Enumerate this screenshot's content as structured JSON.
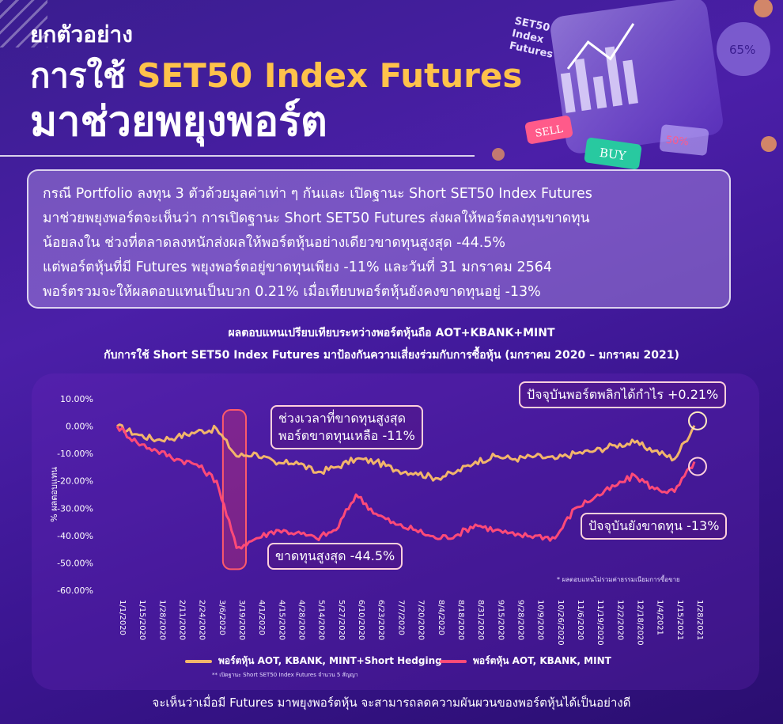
{
  "header": {
    "kicker": "ยกตัวอย่าง",
    "title_prefix": "การใช้ ",
    "title_highlight": "SET50 Index Futures",
    "title_line2": "มาช่วยพยุงพอร์ต"
  },
  "hero": {
    "card_title_1": "SET50",
    "card_title_2": "Index",
    "card_title_3": "Futures",
    "sell_label": "SELL",
    "buy_label": "BUY",
    "pct_a": "65%",
    "pct_b": "50%"
  },
  "summary": {
    "lines": [
      "กรณี Portfolio ลงทุน 3 ตัวด้วยมูลค่าเท่า ๆ กันและ เปิดฐานะ Short SET50 Index Futures",
      "มาช่วยพยุงพอร์ตจะเห็นว่า การเปิดฐานะ Short SET50 Futures ส่งผลให้พอร์ตลงทุนขาดทุน",
      "น้อยลงใน ช่วงที่ตลาดลงหนักส่งผลให้พอร์ตหุ้นอย่างเดียวขาดทุนสูงสุด -44.5%",
      "แต่พอร์ตหุ้นที่มี Futures พยุงพอร์ตอยู่ขาดทุนเพียง -11% และวันที่ 31 มกราคม 2564",
      "พอร์ตรวมจะให้ผลตอบแทนเป็นบวก 0.21% เมื่อเทียบพอร์ตหุ้นยังคงขาดทุนอยู่ -13%"
    ]
  },
  "chart_data": {
    "type": "line",
    "title": "ผลตอบแทนเปรียบเทียบระหว่างพอร์ตหุ้นถือ AOT+KBANK+MINT",
    "subtitle": "กับการใช้ Short SET50 Index Futures มาป้องกันความเสี่ยงร่วมกับการซื้อหุ้น (มกราคม 2020 – มกราคม 2021)",
    "ylabel": "% ผลตอบแทน",
    "ylim": [
      -60,
      10
    ],
    "y_ticks": [
      "10.00%",
      "0.00%",
      "-10.00%",
      "-20.00%",
      "-30.00%",
      "-40.00%",
      "-50.00%",
      "-60.00%"
    ],
    "x_ticks": [
      "1/1/2020",
      "1/15/2020",
      "1/28/2020",
      "2/11/2020",
      "2/24/2020",
      "3/6/2020",
      "3/19/2020",
      "4/1/2020",
      "4/15/2020",
      "4/28/2020",
      "5/14/2020",
      "5/27/2020",
      "6/10/2020",
      "6/23/2020",
      "7/7/2020",
      "7/20/2020",
      "8/4/2020",
      "8/18/2020",
      "8/31/2020",
      "9/15/2020",
      "9/28/2020",
      "10/9/2020",
      "10/26/2020",
      "11/6/2020",
      "11/19/2020",
      "12/2/2020",
      "12/18/2020",
      "1/4/2021",
      "1/15/2021",
      "1/28/2021"
    ],
    "series": [
      {
        "name": "พอร์ตหุ้น AOT, KBANK, MINT+Short Hedging",
        "color": "#f2b56b",
        "values": [
          0.0,
          -3,
          -5,
          -4,
          -2,
          -1,
          -11,
          -10,
          -14,
          -13,
          -17,
          -15,
          -12,
          -13,
          -16,
          -17,
          -19,
          -17,
          -13,
          -11,
          -12,
          -11,
          -12,
          -10,
          -9,
          -7,
          -6,
          -9,
          -12,
          0.21
        ]
      },
      {
        "name": "พอร์ตหุ้น AOT, KBANK, MINT",
        "color": "#ff4a78",
        "values": [
          0.0,
          -6,
          -9,
          -12,
          -14,
          -20,
          -44.5,
          -41,
          -38,
          -39,
          -41,
          -38,
          -25,
          -32,
          -36,
          -38,
          -41,
          -40,
          -36,
          -38,
          -40,
          -40,
          -41,
          -30,
          -26,
          -22,
          -18,
          -23,
          -24,
          -13
        ]
      }
    ],
    "annotations": {
      "max_loss_window": "ช่วงเวลาที่ขาดทุนสูงสุด",
      "hedged_loss": "พอร์ตขาดทุนเหลือ -11%",
      "max_loss": "ขาดทุนสูงสุด -44.5%",
      "now_profit": "ปัจจุบันพอร์ตพลิกได้กำไร +0.21%",
      "now_loss": "ปัจจุบันยังขาดทุน -13%"
    },
    "fee_note": "* ผลตอบแทนไม่รวมค่าธรรมเนียมการซื้อขาย",
    "legend_note": "** เปิดฐานะ Short SET50 Index Futures จำนวน 5 สัญญา",
    "legend_position": "bottom"
  },
  "footer": {
    "text": "จะเห็นว่าเมื่อมี Futures มาพยุงพอร์ตหุ้น จะสามารถลดความผันผวนของพอร์ตหุ้นได้เป็นอย่างดี"
  }
}
